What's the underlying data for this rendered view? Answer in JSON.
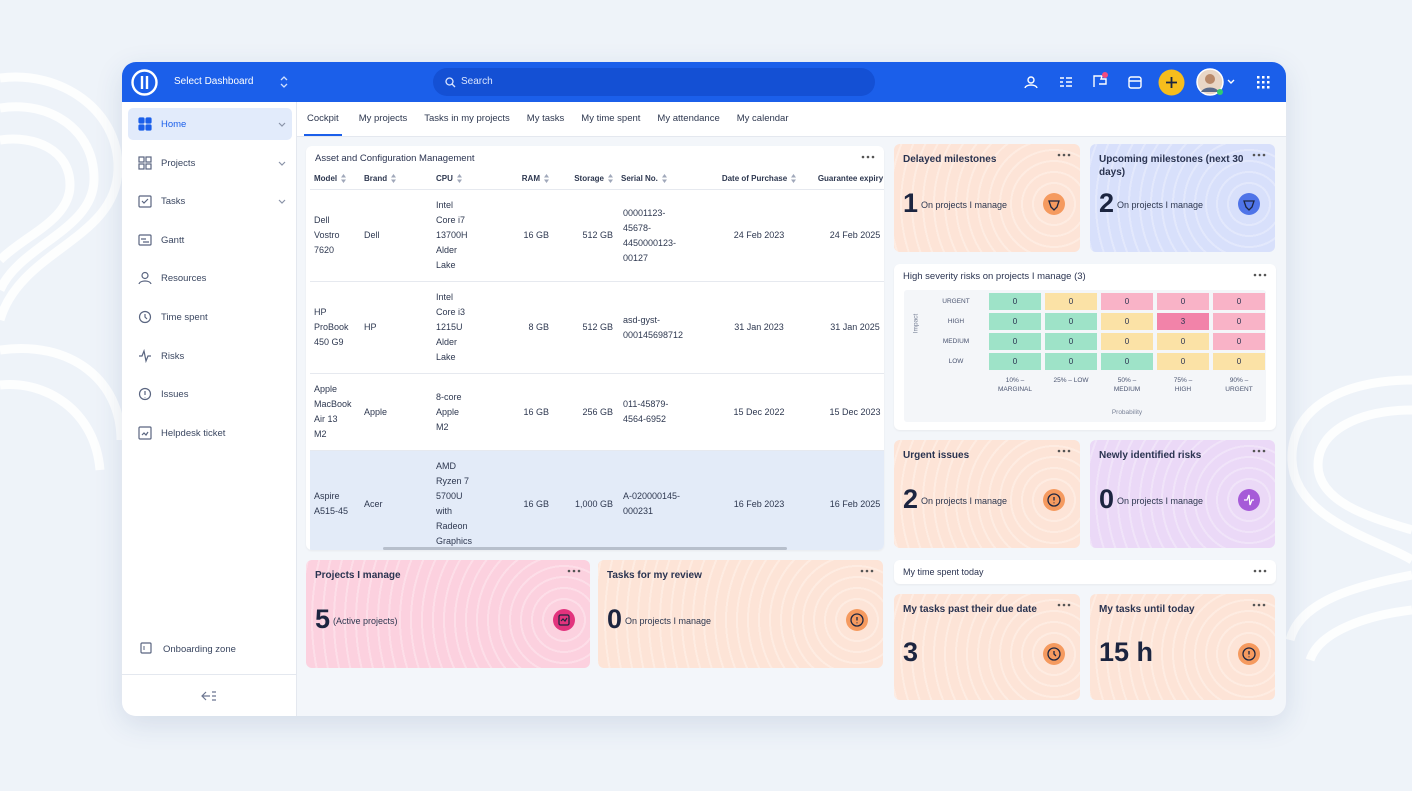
{
  "topbar": {
    "dashboard_select": "Select Dashboard",
    "search": "Search"
  },
  "sidebar": {
    "items": [
      "Home",
      "Projects",
      "Tasks",
      "Gantt",
      "Resources",
      "Time spent",
      "Risks",
      "Issues",
      "Helpdesk ticket"
    ],
    "footer": "Onboarding zone"
  },
  "tabs": [
    "Cockpit",
    "My projects",
    "Tasks in my projects",
    "My tasks",
    "My time spent",
    "My attendance",
    "My calendar"
  ],
  "asset_table": {
    "title": "Asset and Configuration Management",
    "columns": [
      "Model",
      "Brand",
      "CPU",
      "RAM",
      "Storage",
      "Serial No.",
      "Date of Purchase",
      "Guarantee expiry"
    ],
    "rows": [
      [
        "Dell Vostro 7620",
        "Dell",
        "Intel Core i7 13700H Alder Lake",
        "16 GB",
        "512 GB",
        "00001123-45678-4450000123-00127",
        "24 Feb 2023",
        "24 Feb 2025"
      ],
      [
        "HP ProBook 450 G9",
        "HP",
        "Intel Core i3 1215U Alder Lake",
        "8 GB",
        "512 GB",
        "asd-gyst-000145698712",
        "31 Jan 2023",
        "31 Jan 2025"
      ],
      [
        "Apple MacBook Air 13 M2",
        "Apple",
        "8-core Apple M2",
        "16 GB",
        "256 GB",
        "011-45879-4564-6952",
        "15 Dec 2022",
        "15 Dec 2023"
      ],
      [
        "Aspire A515-45",
        "Acer",
        "AMD Ryzen 7 5700U with Radeon Graphics",
        "16 GB",
        "1,000 GB",
        "A-020000145-000231",
        "16 Feb 2023",
        "16 Feb 2025"
      ]
    ]
  },
  "cards": [
    {
      "title": "Delayed milestones",
      "value": 1,
      "caption": "On projects I manage"
    },
    {
      "title": "Upcoming milestones (next 30 days)",
      "value": 2,
      "caption": "On projects I manage"
    },
    {
      "title": "Urgent issues",
      "value": 2,
      "caption": "On projects I manage"
    },
    {
      "title": "Newly identified risks",
      "value": 0,
      "caption": "On projects I manage"
    },
    {
      "title": "Projects I manage",
      "value": 5,
      "caption": "(Active projects)"
    },
    {
      "title": "Tasks for my review",
      "value": 0,
      "caption": "On projects I manage"
    },
    {
      "title": "My tasks past their due date",
      "value": 3
    },
    {
      "title": "My tasks until today",
      "value": "15 h"
    }
  ],
  "risk_matrix": {
    "title": "High severity risks on projects I manage (3)",
    "impact_label": "Impact",
    "probability_label": "Probability",
    "impact_levels": [
      "URGENT",
      "HIGH",
      "MEDIUM",
      "LOW"
    ],
    "probability_levels": [
      "10% – MARGINAL",
      "25% – LOW",
      "50% – MEDIUM",
      "75% – HIGH",
      "90% – URGENT"
    ],
    "values": [
      [
        0,
        0,
        0,
        0,
        0
      ],
      [
        0,
        0,
        0,
        3,
        0
      ],
      [
        0,
        0,
        0,
        0,
        0
      ],
      [
        0,
        0,
        0,
        0,
        0
      ]
    ],
    "colors": [
      [
        "#9ee3c8",
        "#fbe2a6",
        "#f9b3c7",
        "#f9b3c7",
        "#f9b3c7"
      ],
      [
        "#9ee3c8",
        "#9ee3c8",
        "#fbe2a6",
        "#f283a9",
        "#f9b3c7"
      ],
      [
        "#9ee3c8",
        "#9ee3c8",
        "#fbe2a6",
        "#fbe2a6",
        "#f9b3c7"
      ],
      [
        "#9ee3c8",
        "#9ee3c8",
        "#9ee3c8",
        "#fbe2a6",
        "#fbe2a6"
      ]
    ]
  },
  "time_spent_today": {
    "title": "My time spent today"
  }
}
